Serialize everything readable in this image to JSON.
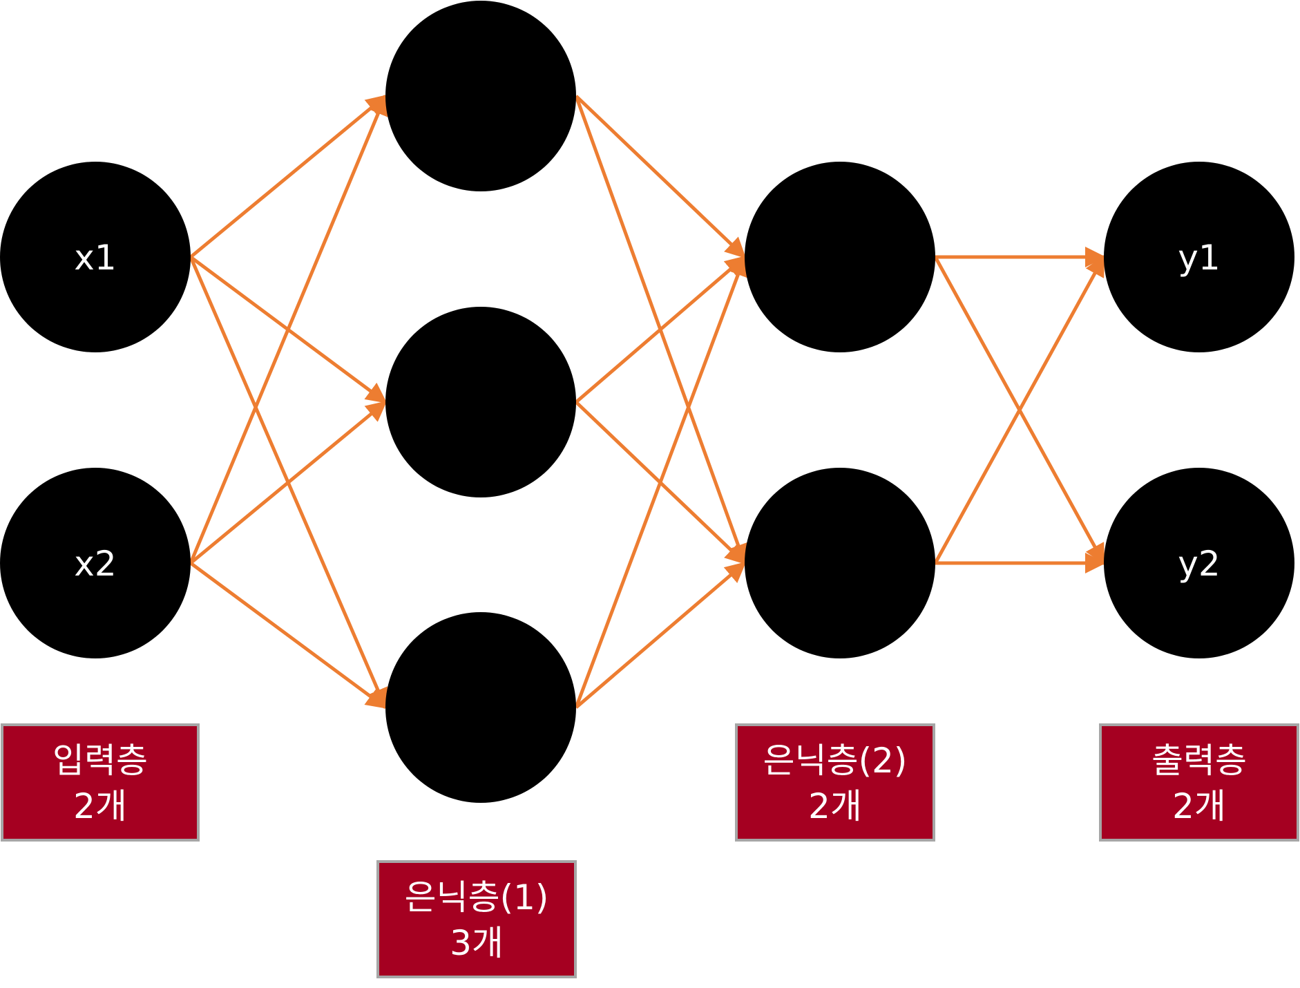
{
  "diagram": {
    "nodes": {
      "x1": "x1",
      "x2": "x2",
      "h1a": "",
      "h1b": "",
      "h1c": "",
      "h2a": "",
      "h2b": "",
      "y1": "y1",
      "y2": "y2"
    },
    "layers": {
      "input": {
        "name": "입력층",
        "count": "2개"
      },
      "hidden1": {
        "name": "은닉층(1)",
        "count": "3개"
      },
      "hidden2": {
        "name": "은닉층(2)",
        "count": "2개"
      },
      "output": {
        "name": "출력층",
        "count": "2개"
      }
    },
    "edges": [
      [
        "x1",
        "h1a"
      ],
      [
        "x1",
        "h1b"
      ],
      [
        "x1",
        "h1c"
      ],
      [
        "x2",
        "h1a"
      ],
      [
        "x2",
        "h1b"
      ],
      [
        "x2",
        "h1c"
      ],
      [
        "h1a",
        "h2a"
      ],
      [
        "h1a",
        "h2b"
      ],
      [
        "h1b",
        "h2a"
      ],
      [
        "h1b",
        "h2b"
      ],
      [
        "h1c",
        "h2a"
      ],
      [
        "h1c",
        "h2b"
      ],
      [
        "h2a",
        "y1"
      ],
      [
        "h2a",
        "y2"
      ],
      [
        "h2b",
        "y1"
      ],
      [
        "h2b",
        "y2"
      ]
    ],
    "colors": {
      "node": "#000000",
      "arrow": "#ED7D31",
      "label_box": "#A50021",
      "label_border": "#A6A6A6",
      "text": "#FFFFFF"
    }
  }
}
